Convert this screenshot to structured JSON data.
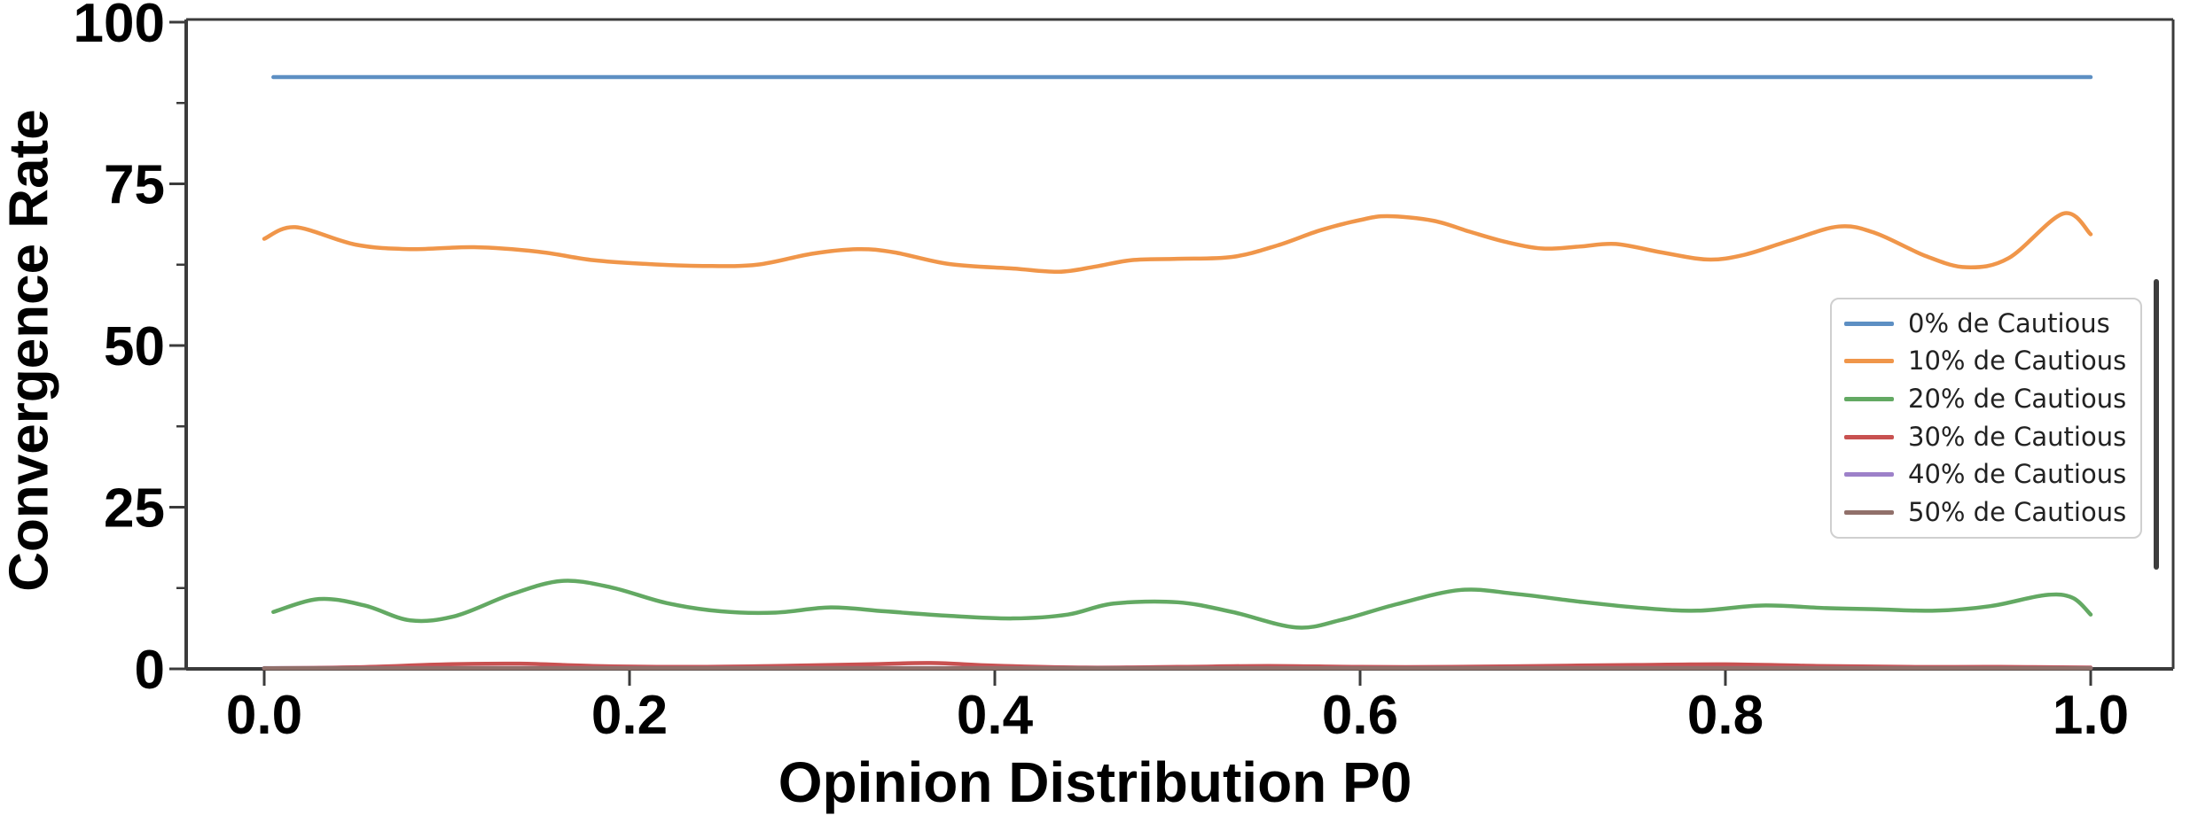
{
  "figure": {
    "xlabel": "Opinion Distribution P0",
    "ylabel": "Convergence Rate"
  },
  "chart_data": {
    "type": "line",
    "title": "",
    "xlabel": "Opinion Distribution P0",
    "ylabel": "Convergence Rate",
    "xlim": [
      -0.042,
      1.047
    ],
    "ylim": [
      0,
      100.5
    ],
    "grid": false,
    "legend_position": "center right",
    "x_ticks": {
      "values": [
        0,
        0.2,
        0.4,
        0.6,
        0.8,
        1.0
      ],
      "labels": [
        "0.0",
        "0.2",
        "0.4",
        "0.6",
        "0.8",
        "1.0"
      ]
    },
    "y_ticks": {
      "values": [
        0,
        25,
        50,
        75,
        100
      ],
      "labels": [
        "0",
        "25",
        "50",
        "75",
        "100"
      ],
      "minor_values": [
        12.5,
        37.5,
        62.5,
        87.5
      ]
    },
    "series": [
      {
        "name": "0% de Cautious",
        "color": "#5d8fc3",
        "x": [
          0.005,
          1.0
        ],
        "y": [
          91.5,
          91.5
        ]
      },
      {
        "name": "10% de Cautious",
        "color": "#f0964a",
        "x": [
          0.0,
          0.017,
          0.05,
          0.08,
          0.115,
          0.15,
          0.18,
          0.21,
          0.24,
          0.27,
          0.3,
          0.325,
          0.345,
          0.375,
          0.41,
          0.435,
          0.455,
          0.475,
          0.5,
          0.53,
          0.555,
          0.578,
          0.6,
          0.615,
          0.64,
          0.66,
          0.68,
          0.7,
          0.72,
          0.74,
          0.765,
          0.79,
          0.81,
          0.835,
          0.862,
          0.882,
          0.91,
          0.932,
          0.955,
          0.985,
          1.0
        ],
        "y": [
          66.5,
          68.3,
          65.6,
          64.9,
          65.2,
          64.5,
          63.2,
          62.6,
          62.3,
          62.5,
          64.2,
          64.9,
          64.4,
          62.6,
          61.9,
          61.4,
          62.2,
          63.2,
          63.4,
          63.7,
          65.5,
          67.8,
          69.4,
          70.0,
          69.3,
          67.6,
          66.0,
          65.0,
          65.3,
          65.7,
          64.4,
          63.3,
          64.0,
          66.2,
          68.4,
          67.4,
          63.8,
          62.1,
          63.5,
          70.4,
          67.2
        ]
      },
      {
        "name": "20% de Cautious",
        "color": "#63a963",
        "x": [
          0.005,
          0.03,
          0.055,
          0.08,
          0.105,
          0.135,
          0.163,
          0.19,
          0.22,
          0.25,
          0.28,
          0.31,
          0.34,
          0.375,
          0.41,
          0.44,
          0.465,
          0.5,
          0.53,
          0.565,
          0.59,
          0.62,
          0.655,
          0.685,
          0.72,
          0.755,
          0.785,
          0.82,
          0.855,
          0.885,
          0.915,
          0.945,
          0.975,
          0.99,
          1.0
        ],
        "y": [
          8.8,
          10.8,
          9.8,
          7.5,
          8.2,
          11.5,
          13.6,
          12.6,
          10.2,
          8.9,
          8.7,
          9.5,
          8.9,
          8.2,
          7.8,
          8.4,
          10.1,
          10.3,
          8.8,
          6.4,
          7.6,
          10.0,
          12.2,
          11.6,
          10.4,
          9.4,
          9.0,
          9.8,
          9.4,
          9.2,
          9.0,
          9.7,
          11.4,
          11.0,
          8.4
        ]
      },
      {
        "name": "30% de Cautious",
        "color": "#c85150",
        "x": [
          0.0,
          0.05,
          0.1,
          0.14,
          0.18,
          0.23,
          0.28,
          0.33,
          0.365,
          0.4,
          0.45,
          0.5,
          0.55,
          0.6,
          0.65,
          0.7,
          0.75,
          0.8,
          0.85,
          0.9,
          0.95,
          1.0
        ],
        "y": [
          0.1,
          0.25,
          0.7,
          0.8,
          0.45,
          0.3,
          0.45,
          0.7,
          0.9,
          0.5,
          0.2,
          0.3,
          0.45,
          0.3,
          0.3,
          0.45,
          0.6,
          0.7,
          0.45,
          0.3,
          0.3,
          0.2
        ]
      },
      {
        "name": "40% de Cautious",
        "color": "#9d81c9",
        "x": [
          0.0,
          1.0
        ],
        "y": [
          0.12,
          0.12
        ]
      },
      {
        "name": "50% de Cautious",
        "color": "#91706a",
        "x": [
          0.0,
          1.0
        ],
        "y": [
          0.1,
          0.1
        ]
      }
    ]
  },
  "colors": {
    "spine": "#3b3b3b",
    "tick_label": "#000000",
    "legend_border": "#cfcfcf",
    "legend_text": "#222222",
    "scrollbar_thumb": "#3d3d3d"
  }
}
